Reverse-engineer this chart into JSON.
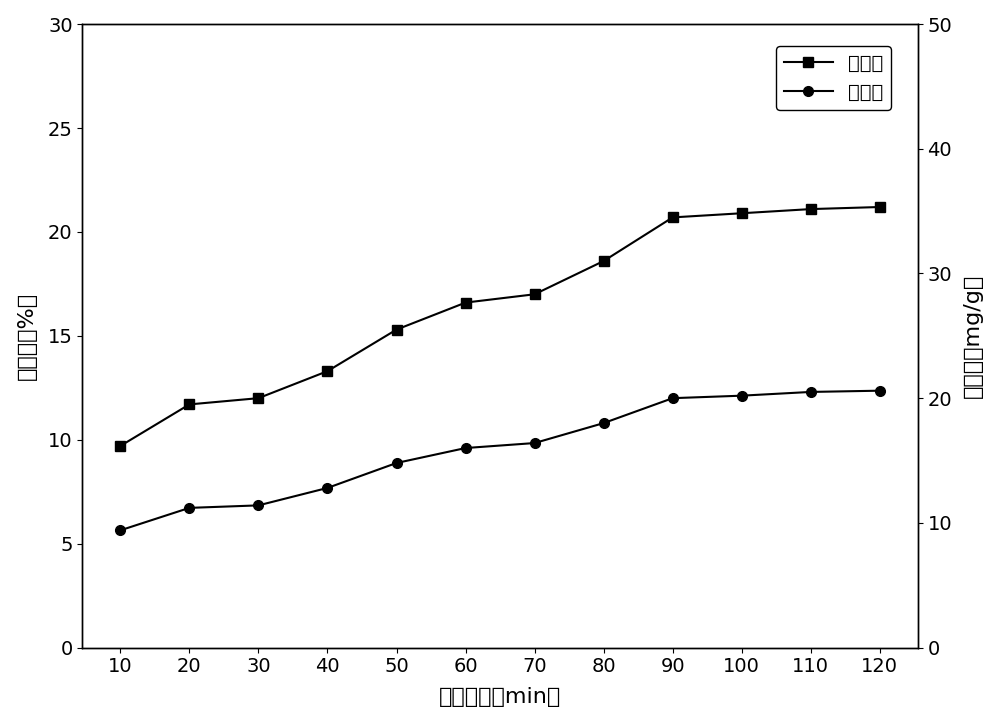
{
  "x": [
    10,
    20,
    30,
    40,
    50,
    60,
    70,
    80,
    90,
    100,
    110,
    120
  ],
  "adsorption_rate": [
    9.7,
    11.7,
    12.0,
    13.3,
    15.3,
    16.6,
    17.0,
    18.6,
    20.7,
    20.9,
    21.1,
    21.2
  ],
  "adsorption_amount": [
    9.4,
    11.2,
    11.4,
    12.8,
    14.8,
    16.0,
    16.4,
    18.0,
    20.0,
    20.2,
    20.5,
    20.6
  ],
  "xlabel": "接触时间（min）",
  "ylabel_left": "吸附率（%）",
  "ylabel_right": "吸附量（mg/g）",
  "legend_rate": "吸附率",
  "legend_amount": "吸附量",
  "ylim_left": [
    0,
    30
  ],
  "ylim_right": [
    0,
    50
  ],
  "yticks_left": [
    0,
    5,
    10,
    15,
    20,
    25,
    30
  ],
  "yticks_right": [
    0,
    10,
    20,
    30,
    40,
    50
  ],
  "background_color": "#ffffff",
  "label_fontsize": 16,
  "tick_fontsize": 14,
  "legend_fontsize": 14
}
